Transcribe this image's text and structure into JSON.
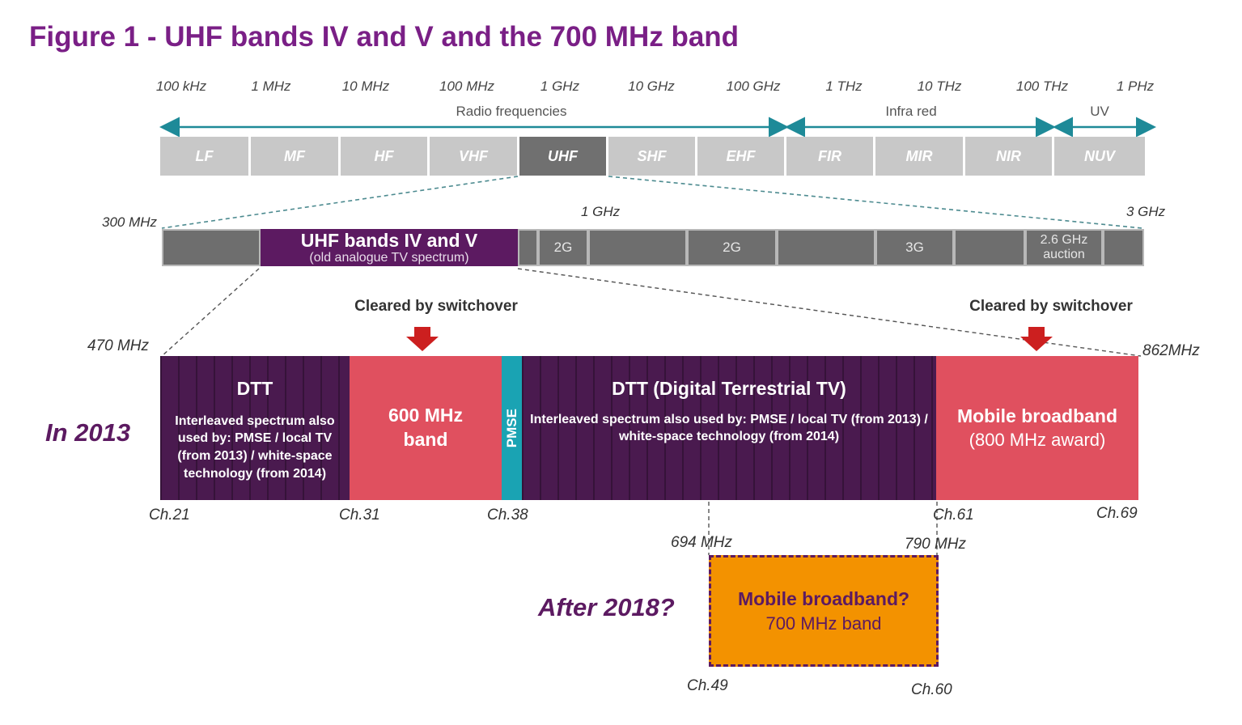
{
  "title": "Figure 1 - UHF bands IV and V and the 700 MHz band",
  "frequency_scale": [
    "100 kHz",
    "1 MHz",
    "10 MHz",
    "100 MHz",
    "1 GHz",
    "10 GHz",
    "100 GHz",
    "1 THz",
    "10 THz",
    "100 THz",
    "1 PHz"
  ],
  "categories": {
    "radio": "Radio frequencies",
    "infrared": "Infra red",
    "uv": "UV"
  },
  "bands": [
    "LF",
    "MF",
    "HF",
    "VHF",
    "UHF",
    "SHF",
    "EHF",
    "FIR",
    "MIR",
    "NIR",
    "NUV"
  ],
  "selected_band": "UHF",
  "uhf_row": {
    "label_left": "300 MHz",
    "label_mid": "1 GHz",
    "label_right": "3 GHz",
    "uhf_title": "UHF bands IV and V",
    "uhf_sub": "(old analogue TV spectrum)",
    "seg_2g_a": "2G",
    "seg_2g_b": "2G",
    "seg_3g": "3G",
    "seg_auction": "2.6 GHz auction"
  },
  "detail": {
    "freq_left": "470 MHz",
    "freq_right": "862MHz",
    "cleared_left": "Cleared  by switchover",
    "cleared_right": "Cleared  by switchover",
    "year_2013": "In 2013",
    "dtt1_title": "DTT",
    "dtt1_sub": "Interleaved spectrum also used by: PMSE / local TV (from 2013) / white-space technology (from 2014)",
    "band600": "600 MHz band",
    "pmse": "PMSE",
    "dtt2_title": "DTT (Digital Terrestrial TV)",
    "dtt2_sub": "Interleaved spectrum also used by: PMSE / local TV (from 2013) / white-space technology (from 2014)",
    "mobile_title": "Mobile broadband",
    "mobile_sub": "(800 MHz award)",
    "channels": {
      "ch21": "Ch.21",
      "ch31": "Ch.31",
      "ch38": "Ch.38",
      "ch61": "Ch.61",
      "ch69": "Ch.69"
    }
  },
  "future": {
    "freq_694": "694 MHz",
    "freq_790": "790 MHz",
    "year": "After 2018?",
    "title": "Mobile broadband?",
    "sub": "700 MHz band",
    "ch49": "Ch.49",
    "ch60": "Ch.60"
  },
  "colors": {
    "purple": "#5c1a61",
    "red": "#e0505f",
    "teal": "#1aa3b3",
    "orange": "#f39200",
    "grey": "#c8c8c8"
  }
}
